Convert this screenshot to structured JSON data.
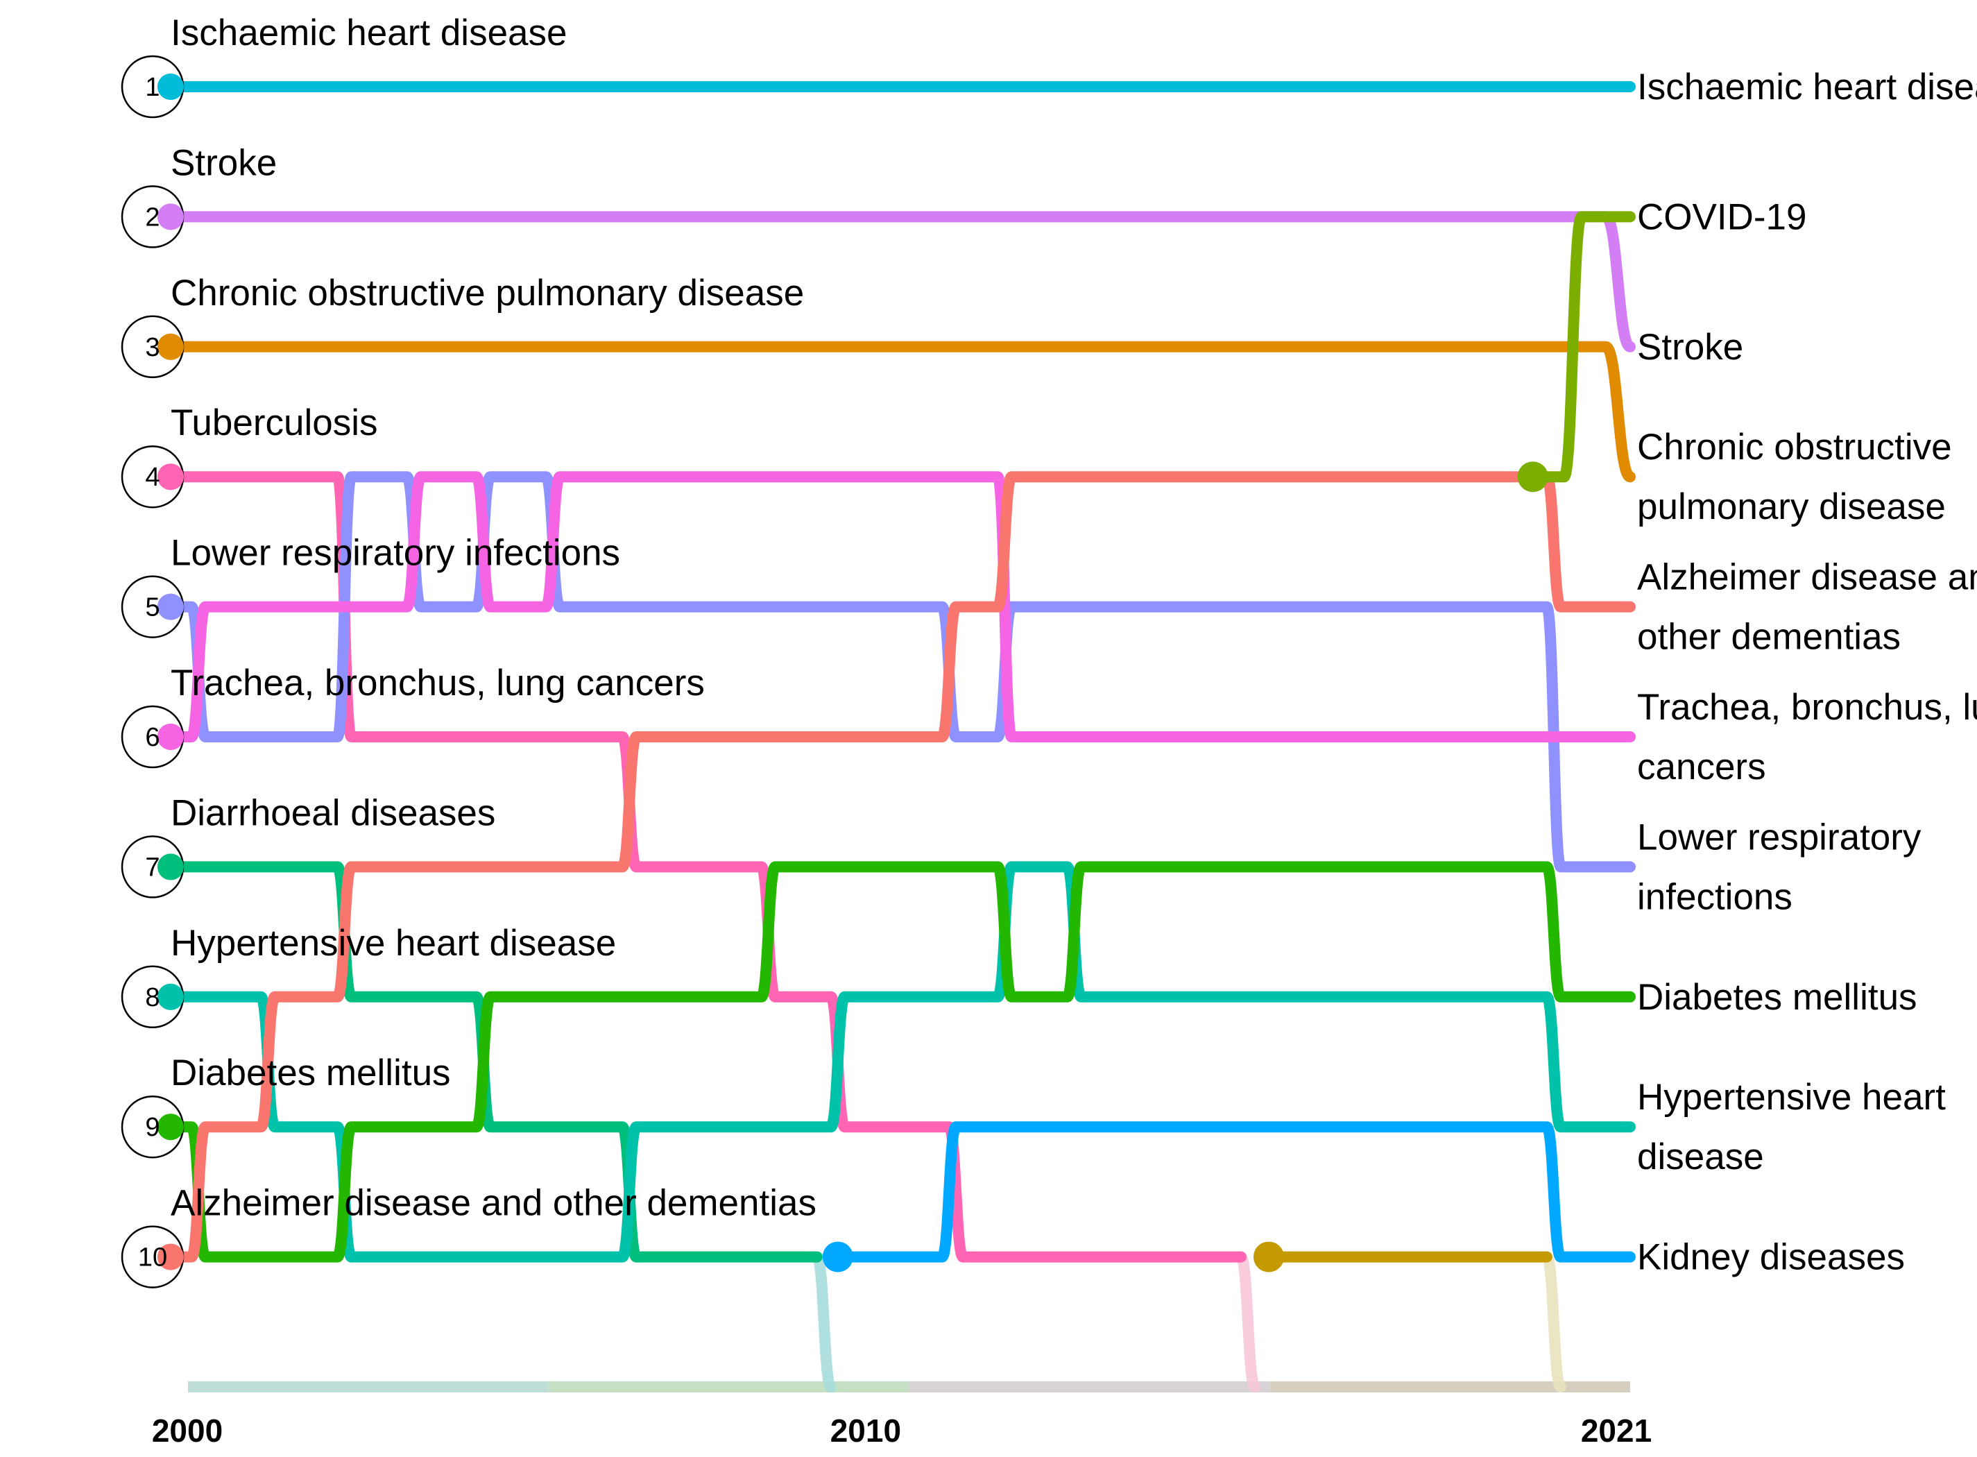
{
  "chart_data": {
    "type": "bump",
    "title": "",
    "xlabel": "",
    "ylabel": "",
    "x_tick_labels": [
      "2000",
      "2010",
      "2021"
    ],
    "xlim": [
      2000,
      2021
    ],
    "ylim": [
      1,
      10
    ],
    "rank_labels": [
      "1",
      "2",
      "3",
      "4",
      "5",
      "6",
      "7",
      "8",
      "9",
      "10"
    ],
    "grid": false,
    "legend": "none",
    "start_labels": [
      "Ischaemic heart disease",
      "Stroke",
      "Chronic obstructive pulmonary disease",
      "Tuberculosis",
      "Lower respiratory infections",
      "Trachea, bronchus, lung cancers",
      "Diarrhoeal diseases",
      "Hypertensive heart disease",
      "Diabetes mellitus",
      "Alzheimer disease and other dementias"
    ],
    "end_labels": [
      {
        "rank": 1,
        "lines": [
          "Ischaemic heart disease"
        ]
      },
      {
        "rank": 2,
        "lines": [
          "COVID-19"
        ]
      },
      {
        "rank": 3,
        "lines": [
          "Stroke"
        ]
      },
      {
        "rank": 4,
        "lines": [
          "Chronic obstructive",
          "pulmonary disease"
        ]
      },
      {
        "rank": 5,
        "lines": [
          "Alzheimer disease and",
          "other dementias"
        ]
      },
      {
        "rank": 6,
        "lines": [
          "Trachea, bronchus, lung",
          "cancers"
        ]
      },
      {
        "rank": 7,
        "lines": [
          "Lower respiratory",
          "infections"
        ]
      },
      {
        "rank": 8,
        "lines": [
          "Diabetes mellitus"
        ]
      },
      {
        "rank": 9,
        "lines": [
          "Hypertensive heart",
          "disease"
        ]
      },
      {
        "rank": 10,
        "lines": [
          "Kidney diseases"
        ]
      }
    ],
    "series": [
      {
        "key": "ihd",
        "name": "Ischaemic heart disease",
        "color": "#00BCD8",
        "points": [
          [
            2000,
            1
          ],
          [
            2021,
            1
          ]
        ]
      },
      {
        "key": "stroke",
        "name": "Stroke",
        "color": "#D47EF5",
        "points": [
          [
            2000,
            2
          ],
          [
            2020.65,
            2
          ],
          [
            2021,
            3
          ]
        ]
      },
      {
        "key": "copd",
        "name": "Chronic obstructive pulmonary disease",
        "color": "#E08B00",
        "points": [
          [
            2000,
            3
          ],
          [
            2020.65,
            3
          ],
          [
            2021,
            4
          ]
        ]
      },
      {
        "key": "tb",
        "name": "Tuberculosis",
        "color": "#FF65B2",
        "points": [
          [
            2000,
            4
          ],
          [
            2002.4,
            4
          ],
          [
            2002.6,
            6
          ],
          [
            2006.5,
            6
          ],
          [
            2006.7,
            7
          ],
          [
            2008.5,
            7
          ],
          [
            2008.7,
            8
          ],
          [
            2009.5,
            8
          ],
          [
            2009.7,
            9
          ],
          [
            2011.2,
            9
          ],
          [
            2011.4,
            10
          ],
          [
            2015.4,
            10
          ],
          [
            2015.6,
            11
          ]
        ]
      },
      {
        "key": "lri",
        "name": "Lower respiratory infections",
        "color": "#8F91FF",
        "points": [
          [
            2000,
            5
          ],
          [
            2000.3,
            5
          ],
          [
            2000.5,
            6
          ],
          [
            2002.4,
            6
          ],
          [
            2002.6,
            4
          ],
          [
            2003.4,
            4
          ],
          [
            2003.6,
            5
          ],
          [
            2004.4,
            5
          ],
          [
            2004.6,
            4
          ],
          [
            2005.4,
            4
          ],
          [
            2005.6,
            5
          ],
          [
            2011.1,
            5
          ],
          [
            2011.3,
            6
          ],
          [
            2011.9,
            6
          ],
          [
            2012.1,
            5
          ],
          [
            2019.8,
            5
          ],
          [
            2020,
            7
          ],
          [
            2021,
            7
          ]
        ]
      },
      {
        "key": "lung",
        "name": "Trachea, bronchus, lung cancers",
        "color": "#F564E3",
        "points": [
          [
            2000,
            6
          ],
          [
            2000.3,
            6
          ],
          [
            2000.5,
            5
          ],
          [
            2003.4,
            5
          ],
          [
            2003.6,
            4
          ],
          [
            2004.4,
            4
          ],
          [
            2004.6,
            5
          ],
          [
            2005.4,
            5
          ],
          [
            2005.6,
            4
          ],
          [
            2011.9,
            4
          ],
          [
            2012.1,
            6
          ],
          [
            2021,
            6
          ]
        ]
      },
      {
        "key": "diarr",
        "name": "Diarrhoeal diseases",
        "color": "#00BF7D",
        "points": [
          [
            2000,
            7
          ],
          [
            2002.4,
            7
          ],
          [
            2002.6,
            8
          ],
          [
            2004.4,
            8
          ],
          [
            2004.6,
            9
          ],
          [
            2006.5,
            9
          ],
          [
            2006.7,
            10
          ],
          [
            2009.3,
            10
          ],
          [
            2009.5,
            11
          ]
        ]
      },
      {
        "key": "hhd",
        "name": "Hypertensive heart disease",
        "color": "#00C1AA",
        "points": [
          [
            2000,
            8
          ],
          [
            2001.3,
            8
          ],
          [
            2001.5,
            9
          ],
          [
            2002.4,
            9
          ],
          [
            2002.6,
            10
          ],
          [
            2006.5,
            10
          ],
          [
            2006.7,
            9
          ],
          [
            2009.5,
            9
          ],
          [
            2009.7,
            8
          ],
          [
            2011.9,
            8
          ],
          [
            2012.1,
            7
          ],
          [
            2012.9,
            7
          ],
          [
            2013.1,
            8
          ],
          [
            2019.8,
            8
          ],
          [
            2020,
            9
          ],
          [
            2021,
            9
          ]
        ]
      },
      {
        "key": "dm",
        "name": "Diabetes mellitus",
        "color": "#24B700",
        "points": [
          [
            2000,
            9
          ],
          [
            2000.3,
            9
          ],
          [
            2000.5,
            10
          ],
          [
            2002.4,
            10
          ],
          [
            2002.6,
            9
          ],
          [
            2004.4,
            9
          ],
          [
            2004.6,
            8
          ],
          [
            2008.5,
            8
          ],
          [
            2008.7,
            7
          ],
          [
            2011.9,
            7
          ],
          [
            2012.1,
            8
          ],
          [
            2012.9,
            8
          ],
          [
            2013.1,
            7
          ],
          [
            2019.8,
            7
          ],
          [
            2020,
            8
          ],
          [
            2021,
            8
          ]
        ]
      },
      {
        "key": "alz",
        "name": "Alzheimer disease and other dementias",
        "color": "#F8766D",
        "points": [
          [
            2000,
            10
          ],
          [
            2000.3,
            10
          ],
          [
            2000.5,
            9
          ],
          [
            2001.3,
            9
          ],
          [
            2001.5,
            8
          ],
          [
            2002.4,
            8
          ],
          [
            2002.6,
            7
          ],
          [
            2006.5,
            7
          ],
          [
            2006.7,
            6
          ],
          [
            2011.1,
            6
          ],
          [
            2011.3,
            5
          ],
          [
            2011.9,
            5
          ],
          [
            2012.1,
            4
          ],
          [
            2019.8,
            4
          ],
          [
            2020,
            5
          ],
          [
            2021,
            5
          ]
        ]
      },
      {
        "key": "kidney",
        "name": "Kidney diseases",
        "color": "#00A9FF",
        "points": [
          [
            2009.6,
            10
          ],
          [
            2011.1,
            10
          ],
          [
            2011.3,
            9
          ],
          [
            2019.8,
            9
          ],
          [
            2020,
            10
          ],
          [
            2021,
            10
          ]
        ]
      },
      {
        "key": "other",
        "name": "",
        "color": "#C49A00",
        "points": [
          [
            2015.8,
            10
          ],
          [
            2019.8,
            10
          ],
          [
            2020,
            11
          ]
        ]
      },
      {
        "key": "covid",
        "name": "COVID-19",
        "color": "#7CAE00",
        "points": [
          [
            2019.6,
            4
          ],
          [
            2020.05,
            4
          ],
          [
            2020.3,
            2
          ],
          [
            2021,
            2
          ]
        ]
      }
    ],
    "faded_segments": [
      {
        "color": "#A6DCDA",
        "points": [
          [
            2009.3,
            10
          ],
          [
            2009.5,
            11
          ]
        ]
      },
      {
        "color": "#F7C6D8",
        "points": [
          [
            2015.4,
            10
          ],
          [
            2015.6,
            11
          ]
        ]
      },
      {
        "color": "#E8E2BC",
        "points": [
          [
            2019.8,
            10
          ],
          [
            2020,
            11
          ]
        ]
      }
    ],
    "baseline_colors": [
      "#BEDDD6",
      "#C5E0C4",
      "#D8D3D6",
      "#D6CFC0"
    ]
  }
}
